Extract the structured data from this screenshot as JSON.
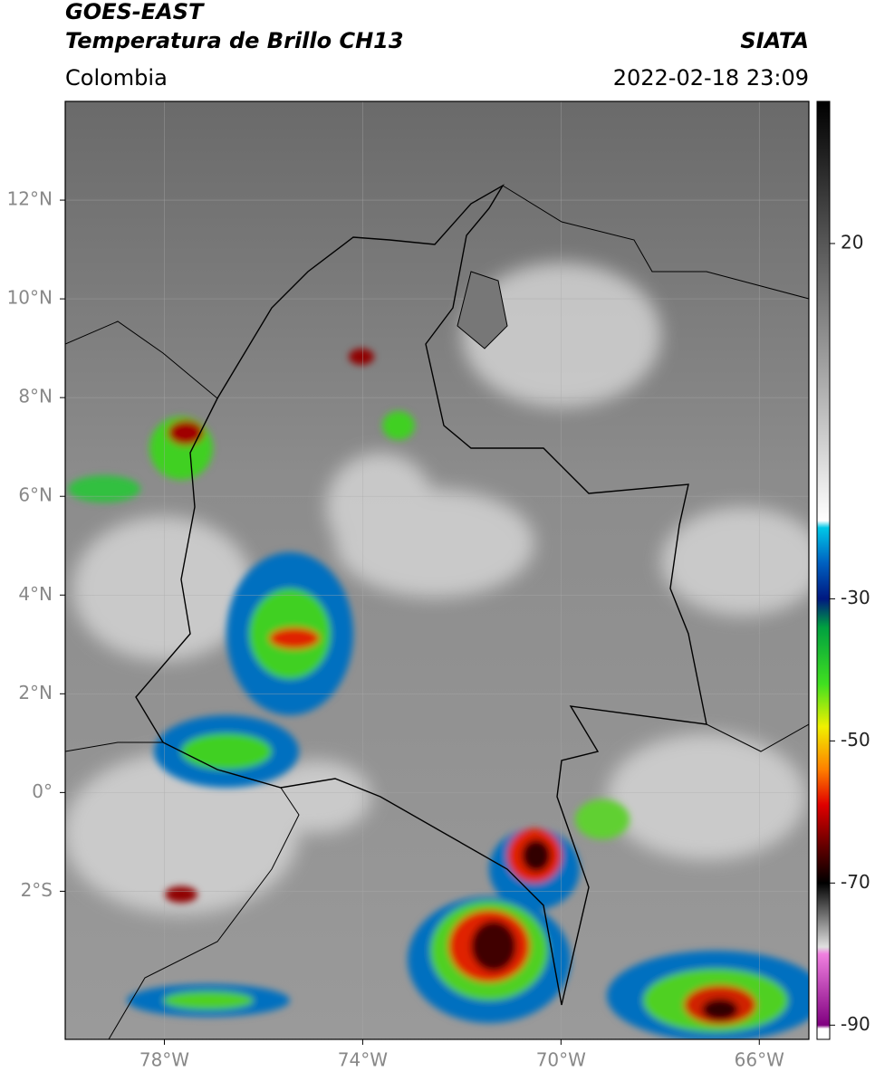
{
  "header": {
    "title": "GOES-EAST",
    "product": "Temperatura de Brillo CH13",
    "source": "SIATA",
    "region": "Colombia",
    "datetime": "2022-02-18 23:09"
  },
  "map": {
    "lon_range": [
      -80,
      -65
    ],
    "lat_range": [
      -5,
      14
    ],
    "lon_ticks": [
      {
        "value": -78,
        "label": "78°W"
      },
      {
        "value": -74,
        "label": "74°W"
      },
      {
        "value": -70,
        "label": "70°W"
      },
      {
        "value": -66,
        "label": "66°W"
      }
    ],
    "lat_ticks": [
      {
        "value": 12,
        "label": "12°N"
      },
      {
        "value": 10,
        "label": "10°N"
      },
      {
        "value": 8,
        "label": "8°N"
      },
      {
        "value": 6,
        "label": "6°N"
      },
      {
        "value": 4,
        "label": "4°N"
      },
      {
        "value": 2,
        "label": "2°N"
      },
      {
        "value": 0,
        "label": "0°"
      },
      {
        "value": -2,
        "label": "2°S"
      }
    ],
    "grid": true
  },
  "colorbar": {
    "range": [
      -92,
      40
    ],
    "ticks": [
      20,
      -30,
      -50,
      -70,
      -90
    ],
    "stops": [
      {
        "value": 40,
        "color": "#000000"
      },
      {
        "value": -19,
        "color": "#ffffff"
      },
      {
        "value": -20,
        "color": "#00c8e8"
      },
      {
        "value": -25,
        "color": "#0060c0"
      },
      {
        "value": -30,
        "color": "#001880"
      },
      {
        "value": -34,
        "color": "#00a040"
      },
      {
        "value": -42,
        "color": "#40e020"
      },
      {
        "value": -48,
        "color": "#f0f000"
      },
      {
        "value": -54,
        "color": "#ff8000"
      },
      {
        "value": -59,
        "color": "#e00000"
      },
      {
        "value": -65,
        "color": "#600000"
      },
      {
        "value": -70,
        "color": "#000000"
      },
      {
        "value": -79,
        "color": "#e0e0e0"
      },
      {
        "value": -80,
        "color": "#f080e0"
      },
      {
        "value": -90,
        "color": "#800080"
      },
      {
        "value": -90.5,
        "color": "#ffffff"
      },
      {
        "value": -92,
        "color": "#ffffff"
      }
    ]
  }
}
